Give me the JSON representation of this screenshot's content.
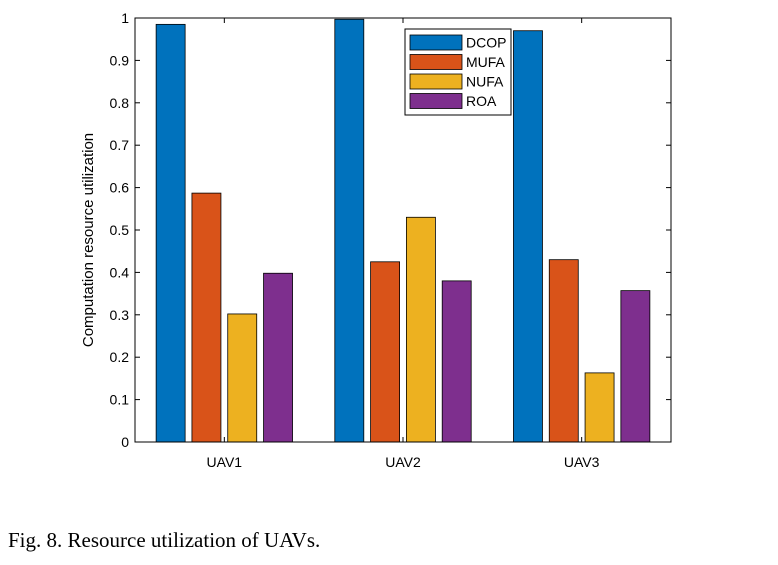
{
  "caption": "Fig. 8.  Resource utilization of UAVs.",
  "chart_data": {
    "type": "bar",
    "categories": [
      "UAV1",
      "UAV2",
      "UAV3"
    ],
    "series": [
      {
        "name": "DCOP",
        "color": "#0072BD",
        "values": [
          0.985,
          0.997,
          0.97
        ]
      },
      {
        "name": "MUFA",
        "color": "#D95319",
        "values": [
          0.587,
          0.425,
          0.43
        ]
      },
      {
        "name": "NUFA",
        "color": "#EDB120",
        "values": [
          0.302,
          0.53,
          0.163
        ]
      },
      {
        "name": "ROA",
        "color": "#7E2F8E",
        "values": [
          0.398,
          0.38,
          0.357
        ]
      }
    ],
    "title": "",
    "xlabel": "",
    "ylabel": "Computation resource utilization",
    "ylim": [
      0,
      1
    ],
    "yticks": [
      "0",
      "0.1",
      "0.2",
      "0.3",
      "0.4",
      "0.5",
      "0.6",
      "0.7",
      "0.8",
      "0.9",
      "1"
    ],
    "grid": false,
    "legend_position": "top-center"
  }
}
